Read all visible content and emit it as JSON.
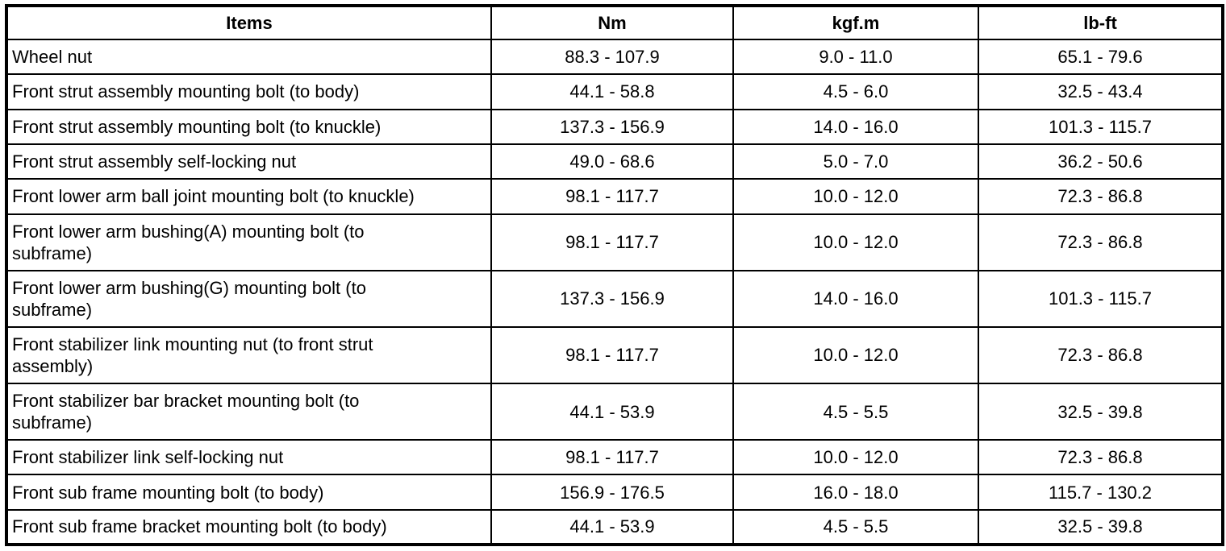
{
  "table": {
    "columns": [
      "Items",
      "Nm",
      "kgf.m",
      "lb-ft"
    ],
    "rows": [
      {
        "item": "Wheel nut",
        "nm": "88.3 - 107.9",
        "kgfm": "9.0 - 11.0",
        "lbft": "65.1 - 79.6"
      },
      {
        "item": "Front strut assembly mounting bolt (to body)",
        "nm": "44.1 - 58.8",
        "kgfm": "4.5 - 6.0",
        "lbft": "32.5 - 43.4"
      },
      {
        "item": "Front strut assembly mounting bolt (to knuckle)",
        "nm": "137.3 - 156.9",
        "kgfm": "14.0 - 16.0",
        "lbft": "101.3 - 115.7"
      },
      {
        "item": "Front strut assembly self-locking nut",
        "nm": "49.0 - 68.6",
        "kgfm": "5.0 - 7.0",
        "lbft": "36.2 - 50.6"
      },
      {
        "item": "Front lower arm ball joint mounting bolt (to knuckle)",
        "nm": "98.1 - 117.7",
        "kgfm": "10.0 - 12.0",
        "lbft": "72.3 - 86.8"
      },
      {
        "item": "Front lower arm bushing(A) mounting bolt (to\nsubframe)",
        "nm": "98.1 - 117.7",
        "kgfm": "10.0 - 12.0",
        "lbft": "72.3 - 86.8"
      },
      {
        "item": "Front lower arm bushing(G) mounting bolt (to\nsubframe)",
        "nm": "137.3 - 156.9",
        "kgfm": "14.0 - 16.0",
        "lbft": "101.3 - 115.7"
      },
      {
        "item": "Front stabilizer link mounting nut (to front strut\nassembly)",
        "nm": "98.1 - 117.7",
        "kgfm": "10.0 - 12.0",
        "lbft": "72.3 - 86.8"
      },
      {
        "item": "Front stabilizer bar bracket mounting bolt (to\nsubframe)",
        "nm": "44.1 - 53.9",
        "kgfm": "4.5 - 5.5",
        "lbft": "32.5 - 39.8"
      },
      {
        "item": "Front stabilizer link self-locking nut",
        "nm": "98.1 - 117.7",
        "kgfm": "10.0 - 12.0",
        "lbft": "72.3 - 86.8"
      },
      {
        "item": "Front sub frame mounting bolt (to body)",
        "nm": "156.9 - 176.5",
        "kgfm": "16.0 - 18.0",
        "lbft": "115.7 - 130.2"
      },
      {
        "item": "Front sub frame bracket mounting bolt (to body)",
        "nm": "44.1 - 53.9",
        "kgfm": "4.5 - 5.5",
        "lbft": "32.5 - 39.8"
      }
    ]
  }
}
